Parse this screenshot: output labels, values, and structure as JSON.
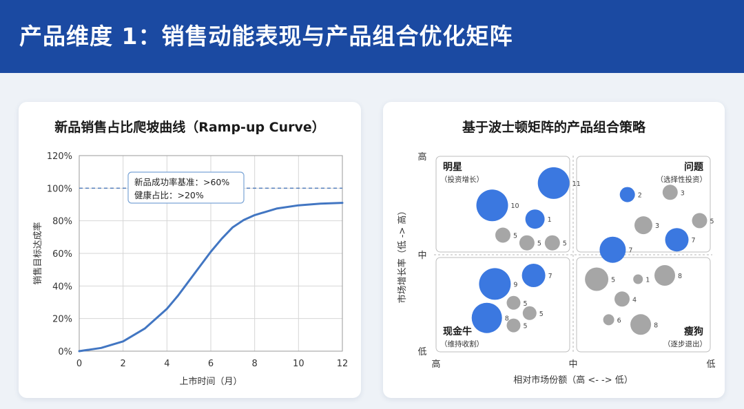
{
  "header": {
    "title": "产品维度 1：销售动能表现与产品组合优化矩阵"
  },
  "colors": {
    "header_bg": "#1b4aa2",
    "curve": "#4276c2",
    "blue_bubble": "#3b78e0",
    "gray_bubble": "#a6a6a6",
    "dashed": "#4a77b8"
  },
  "chart_data": [
    {
      "type": "line",
      "title": "新品销售占比爬坡曲线（Ramp-up Curve）",
      "xlabel": "上市时间（月）",
      "ylabel": "销售目标达成率",
      "xlim": [
        0,
        12
      ],
      "ylim": [
        0,
        120
      ],
      "x_ticks": [
        "0",
        "2",
        "4",
        "6",
        "8",
        "10",
        "12"
      ],
      "y_ticks": [
        "0%",
        "20%",
        "40%",
        "60%",
        "80%",
        "100%",
        "120%"
      ],
      "grid": true,
      "series": [
        {
          "x": [
            0,
            1,
            2,
            3,
            4,
            4.5,
            5,
            5.5,
            6,
            6.5,
            7,
            7.5,
            8,
            9,
            10,
            11,
            12
          ],
          "y": [
            0,
            2,
            6,
            14,
            26,
            34,
            43,
            52,
            61,
            69,
            76,
            80.5,
            83.5,
            87.5,
            89.5,
            90.5,
            91
          ]
        }
      ],
      "reference_line": {
        "y": 100,
        "style": "dashed"
      },
      "annotation": {
        "line1": "新品成功率基准：>60%",
        "line2": "健康占比：>20%"
      }
    },
    {
      "type": "scatter",
      "title": "基于波士顿矩阵的产品组合策略",
      "xlabel": "相对市场份额（高 <- -> 低）",
      "ylabel": "市场增长率（低 -> 高）",
      "y_ticks": [
        "高",
        "中",
        "低"
      ],
      "x_ticks": [
        "高",
        "中",
        "低"
      ],
      "quadrants": [
        {
          "name": "明星",
          "sub": "（投资增长）"
        },
        {
          "name": "问题",
          "sub": "（选择性投资）"
        },
        {
          "name": "现金牛",
          "sub": "（维持收割）"
        },
        {
          "name": "瘦狗",
          "sub": "（逐步退出）"
        }
      ],
      "points": [
        {
          "q": 0,
          "x": 0.42,
          "y": 0.64,
          "r": 23,
          "color": "blue",
          "label": "10"
        },
        {
          "q": 0,
          "x": 0.88,
          "y": 0.35,
          "r": 23,
          "color": "blue",
          "label": "11"
        },
        {
          "q": 0,
          "x": 0.74,
          "y": 0.82,
          "r": 14,
          "color": "blue",
          "label": "1"
        },
        {
          "q": 0,
          "x": 0.5,
          "y": 1.03,
          "r": 11,
          "color": "gray",
          "label": "5"
        },
        {
          "q": 0,
          "x": 0.68,
          "y": 1.13,
          "r": 11,
          "color": "gray",
          "label": "5"
        },
        {
          "q": 0,
          "x": 0.87,
          "y": 1.13,
          "r": 11,
          "color": "gray",
          "label": "5"
        },
        {
          "q": 1,
          "x": 0.38,
          "y": 0.5,
          "r": 11,
          "color": "blue",
          "label": "2"
        },
        {
          "q": 1,
          "x": 0.7,
          "y": 0.47,
          "r": 11,
          "color": "gray",
          "label": "3"
        },
        {
          "q": 1,
          "x": 0.5,
          "y": 0.9,
          "r": 13,
          "color": "gray",
          "label": "3"
        },
        {
          "q": 1,
          "x": 0.92,
          "y": 0.84,
          "r": 11,
          "color": "gray",
          "label": "5"
        },
        {
          "q": 1,
          "x": 0.75,
          "y": 1.09,
          "r": 17,
          "color": "blue",
          "label": "7"
        },
        {
          "q": 1,
          "x": 0.27,
          "y": 1.22,
          "r": 19,
          "color": "blue",
          "label": "7"
        },
        {
          "q": 2,
          "x": 0.44,
          "y": 0.28,
          "r": 23,
          "color": "blue",
          "label": "9"
        },
        {
          "q": 2,
          "x": 0.73,
          "y": 0.19,
          "r": 17,
          "color": "blue",
          "label": "7"
        },
        {
          "q": 2,
          "x": 0.38,
          "y": 0.64,
          "r": 22,
          "color": "blue",
          "label": "8"
        },
        {
          "q": 2,
          "x": 0.58,
          "y": 0.48,
          "r": 10,
          "color": "gray",
          "label": "5"
        },
        {
          "q": 2,
          "x": 0.7,
          "y": 0.59,
          "r": 10,
          "color": "gray",
          "label": "5"
        },
        {
          "q": 2,
          "x": 0.58,
          "y": 0.72,
          "r": 10,
          "color": "gray",
          "label": "5"
        },
        {
          "q": 3,
          "x": 0.15,
          "y": 0.23,
          "r": 17,
          "color": "gray",
          "label": "5"
        },
        {
          "q": 3,
          "x": 0.34,
          "y": 0.44,
          "r": 11,
          "color": "gray",
          "label": "4"
        },
        {
          "q": 3,
          "x": 0.24,
          "y": 0.66,
          "r": 8,
          "color": "gray",
          "label": "6"
        },
        {
          "q": 3,
          "x": 0.48,
          "y": 0.71,
          "r": 15,
          "color": "gray",
          "label": "8"
        },
        {
          "q": 3,
          "x": 0.46,
          "y": 0.23,
          "r": 7,
          "color": "gray",
          "label": "1"
        },
        {
          "q": 3,
          "x": 0.66,
          "y": 0.19,
          "r": 15,
          "color": "gray",
          "label": "8"
        }
      ]
    }
  ]
}
